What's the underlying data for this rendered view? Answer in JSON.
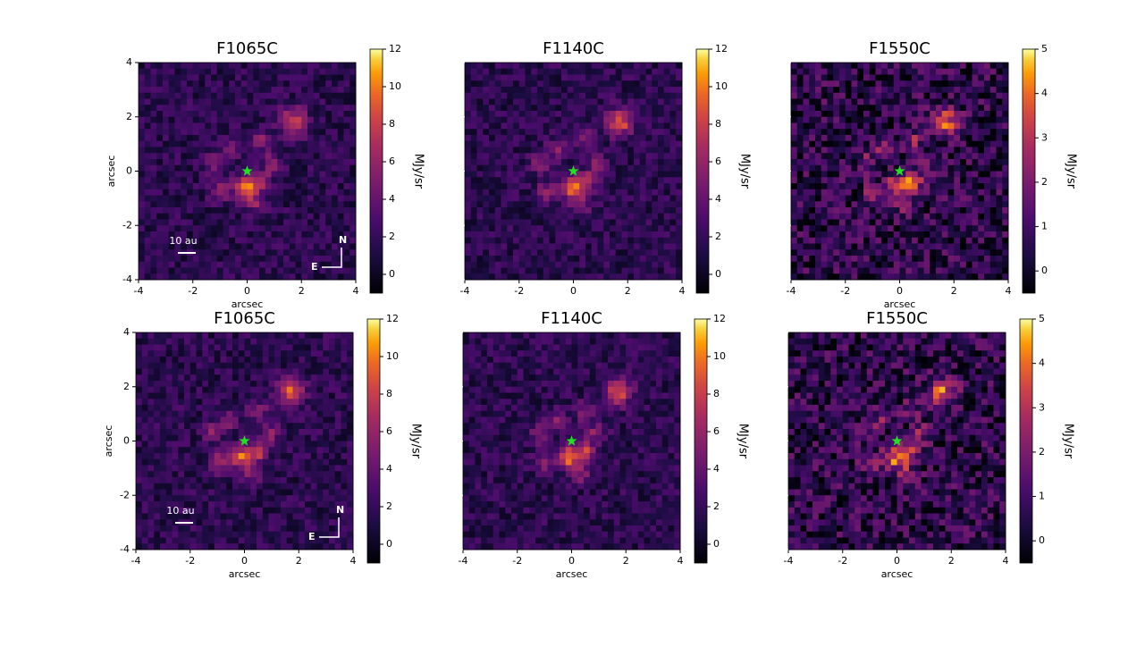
{
  "chart_data": [
    {
      "type": "image",
      "title": "F1065C",
      "xlabel": "arcsec",
      "ylabel": "arcsec",
      "xlim": [
        -4,
        4
      ],
      "ylim": [
        -4,
        4
      ],
      "xticks": [
        -4,
        -2,
        0,
        2,
        4
      ],
      "yticks": [
        -4,
        -2,
        0,
        2,
        4
      ],
      "show_ytick_labels": true,
      "colormap": "inferno",
      "colorbar_label": "MJy/sr",
      "clim": [
        -1,
        12
      ],
      "cticks": [
        0,
        2,
        4,
        6,
        8,
        10,
        12
      ],
      "star": {
        "x": 0,
        "y": 0,
        "color": "#22e022"
      },
      "scalebar": "10 au",
      "compass": [
        "N",
        "E"
      ]
    },
    {
      "type": "image",
      "title": "F1140C",
      "xlim": [
        -4,
        4
      ],
      "ylim": [
        -4,
        4
      ],
      "xticks": [
        -4,
        -2,
        0,
        2,
        4
      ],
      "yticks": [
        -4,
        -2,
        0,
        2,
        4
      ],
      "show_ytick_labels": false,
      "colormap": "inferno",
      "colorbar_label": "MJy/sr",
      "clim": [
        -1,
        12
      ],
      "cticks": [
        0,
        2,
        4,
        6,
        8,
        10,
        12
      ],
      "star": {
        "x": 0,
        "y": 0,
        "color": "#22e022"
      }
    },
    {
      "type": "image",
      "title": "F1550C",
      "xlabel": "arcsec",
      "xlim": [
        -4,
        4
      ],
      "ylim": [
        -4,
        4
      ],
      "xticks": [
        -4,
        -2,
        0,
        2,
        4
      ],
      "yticks": [
        -4,
        -2,
        0,
        2,
        4
      ],
      "show_ytick_labels": false,
      "colormap": "inferno",
      "colorbar_label": "MJy/sr",
      "clim": [
        -0.5,
        5
      ],
      "cticks": [
        0,
        1,
        2,
        3,
        4,
        5
      ],
      "star": {
        "x": 0,
        "y": 0,
        "color": "#22e022"
      }
    },
    {
      "type": "image",
      "title": "F1065C",
      "xlabel": "arcsec",
      "ylabel": "arcsec",
      "xlim": [
        -4,
        4
      ],
      "ylim": [
        -4,
        4
      ],
      "xticks": [
        -4,
        -2,
        0,
        2,
        4
      ],
      "yticks": [
        -4,
        -2,
        0,
        2,
        4
      ],
      "show_ytick_labels": true,
      "colormap": "inferno",
      "colorbar_label": "MJy/sr",
      "clim": [
        -1,
        12
      ],
      "cticks": [
        0,
        2,
        4,
        6,
        8,
        10,
        12
      ],
      "star": {
        "x": 0,
        "y": 0,
        "color": "#22e022"
      },
      "scalebar": "10 au",
      "compass": [
        "N",
        "E"
      ]
    },
    {
      "type": "image",
      "title": "F1140C",
      "xlabel": "arcsec",
      "xlim": [
        -4,
        4
      ],
      "ylim": [
        -4,
        4
      ],
      "xticks": [
        -4,
        -2,
        0,
        2,
        4
      ],
      "yticks": [
        -4,
        -2,
        0,
        2,
        4
      ],
      "show_ytick_labels": false,
      "colormap": "inferno",
      "colorbar_label": "MJy/sr",
      "clim": [
        -1,
        12
      ],
      "cticks": [
        0,
        2,
        4,
        6,
        8,
        10,
        12
      ],
      "star": {
        "x": 0,
        "y": 0,
        "color": "#22e022"
      }
    },
    {
      "type": "image",
      "title": "F1550C",
      "xlabel": "arcsec",
      "xlim": [
        -4,
        4
      ],
      "ylim": [
        -4,
        4
      ],
      "xticks": [
        -4,
        -2,
        0,
        2,
        4
      ],
      "yticks": [
        -4,
        -2,
        0,
        2,
        4
      ],
      "show_ytick_labels": false,
      "colormap": "inferno",
      "colorbar_label": "MJy/sr",
      "clim": [
        -0.5,
        5
      ],
      "cticks": [
        0,
        1,
        2,
        3,
        4,
        5
      ],
      "star": {
        "x": 0,
        "y": 0,
        "color": "#22e022"
      }
    }
  ]
}
